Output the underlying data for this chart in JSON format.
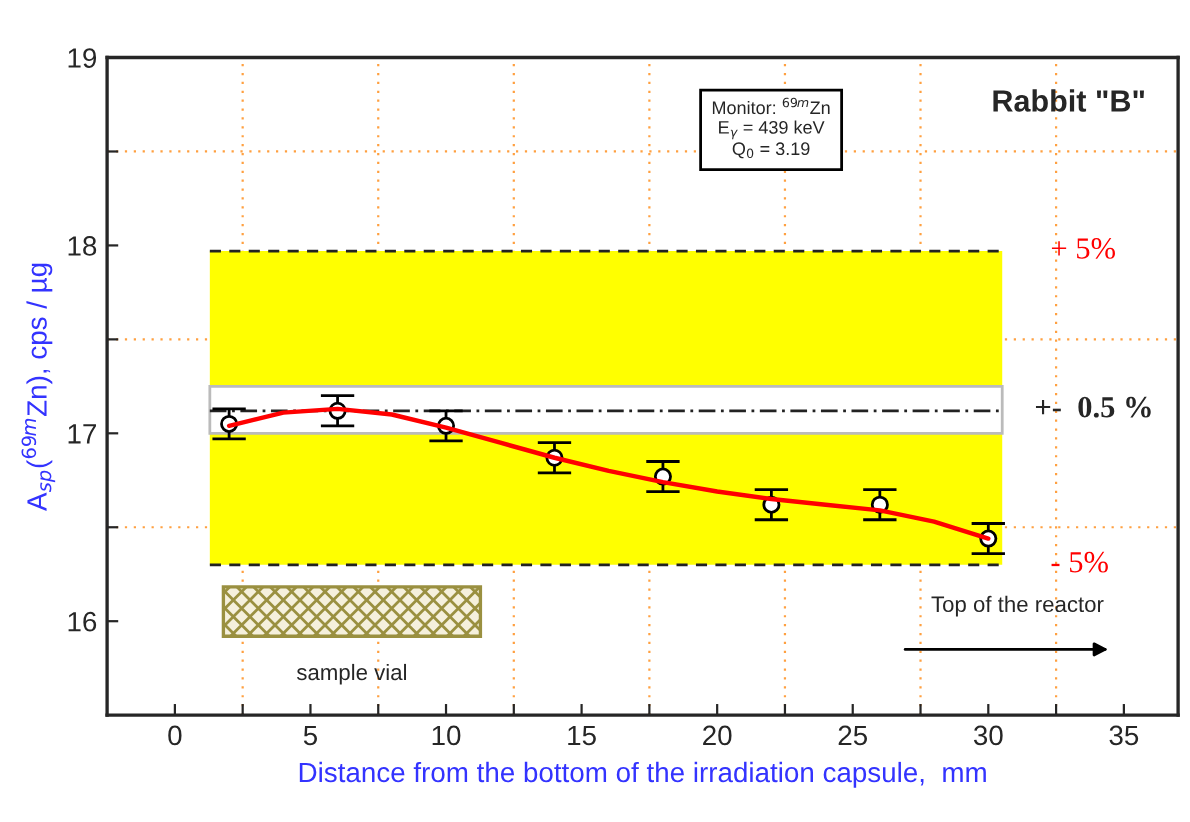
{
  "chart_data": {
    "type": "scatter",
    "xlabel": "Distance from the bottom of the irradiation capsule,  mm",
    "ylabel": "A$_{sp}$($^{69m}$Zn), cps / µg",
    "xlim": [
      -2.5,
      37
    ],
    "ylim": [
      15.5,
      19
    ],
    "xticks": [
      0,
      {
        "value": 2.5,
        "label": null
      },
      5,
      {
        "value": 7.5,
        "label": null
      },
      10,
      {
        "value": 12.5,
        "label": null
      },
      15,
      {
        "value": 17.5,
        "label": null
      },
      20,
      {
        "value": 22.5,
        "label": null
      },
      25,
      {
        "value": 27.5,
        "label": null
      },
      30,
      {
        "value": 32.5,
        "label": null
      },
      35
    ],
    "yticks": [
      16,
      {
        "value": 16.5,
        "label": null
      },
      17,
      {
        "value": 17.5,
        "label": null
      },
      18,
      {
        "value": 18.5,
        "label": null
      },
      19
    ],
    "grid": true,
    "marker": "circle",
    "series": [
      {
        "color": "#000000",
        "x": [
          2,
          6,
          10,
          14,
          18,
          22,
          26,
          30
        ],
        "values": [
          17.05,
          17.12,
          17.04,
          16.87,
          16.77,
          16.62,
          16.62,
          16.44
        ],
        "errors": [
          0.08,
          0.08,
          0.08,
          0.08,
          0.08,
          0.08,
          0.08,
          0.08
        ]
      },
      {
        "type": "line",
        "color": "#ff0000",
        "marker": "none",
        "x": [
          2,
          4,
          6,
          8,
          10,
          12,
          14,
          16,
          18,
          20,
          22,
          24,
          26,
          28,
          30
        ],
        "values": [
          17.04,
          17.11,
          17.13,
          17.1,
          17.03,
          16.95,
          16.87,
          16.8,
          16.74,
          16.69,
          16.65,
          16.62,
          16.59,
          16.53,
          16.44
        ]
      }
    ],
    "bands": [
      {
        "axis": "y",
        "from": 16.3,
        "to": 17.97,
        "color": "#ffff00"
      },
      {
        "axis": "y",
        "from": 17.0,
        "to": 17.25,
        "color": "#ffffff",
        "label": "+-  0.5 %"
      }
    ],
    "ref_lines": [
      {
        "axis": "y",
        "value": 17.97,
        "line_style": "dashed"
      },
      {
        "axis": "y",
        "value": 16.3,
        "line_style": "dashed"
      },
      {
        "axis": "y",
        "value": 17.12,
        "line_style": "dashdot"
      }
    ],
    "annotations": [
      "Rabbit \"B\"",
      "Monitor: $^{69m}$Zn\nE$_{γ}$ = 439 keV\nQ$_{0}$ = 3.19",
      "sample vial",
      "Top of the reactor",
      "+ 5%",
      "- 5%"
    ]
  }
}
